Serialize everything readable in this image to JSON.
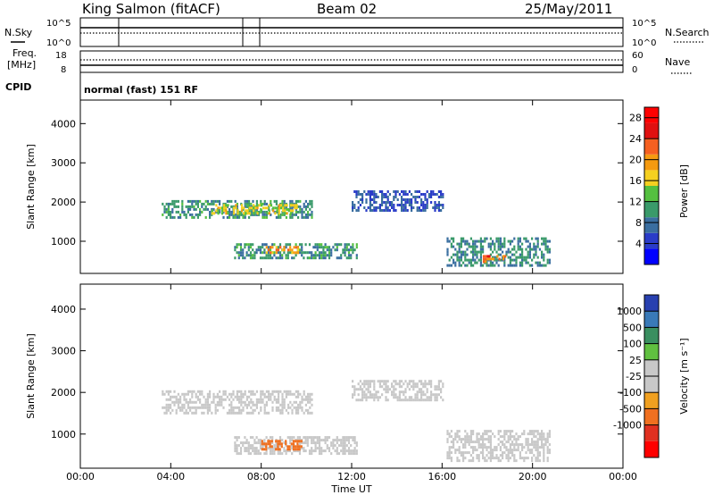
{
  "header": {
    "station": "King Salmon (fitACF)",
    "beam": "Beam 02",
    "date": "25/May/2011"
  },
  "panels": {
    "nsky_label": "N.Sky",
    "nsky_ticks": [
      "10^5",
      "10^0"
    ],
    "nsearch_label": "N.Search",
    "nsearch_ticks": [
      "10^5",
      "10^0"
    ],
    "freq_label": "Freq.",
    "freq_unit": "[MHz]",
    "freq_ticks": [
      "18",
      "8"
    ],
    "nave_label": "Nave",
    "nave_ticks": [
      "60",
      "0"
    ],
    "cpid_label": "CPID",
    "cpid_text": "normal (fast) 151 RF"
  },
  "colors": {
    "power_scale": [
      "#0000ff",
      "#2a3cc8",
      "#3a6ea0",
      "#3a9a6a",
      "#55c040",
      "#f5d020",
      "#f59a10",
      "#f56020",
      "#e01010",
      "#ff0000"
    ],
    "velocity_scale": [
      "#2840b0",
      "#3a7ab8",
      "#3a8f60",
      "#60c040",
      "#c8c8c8",
      "#c8c8c8",
      "#f0a020",
      "#f07020",
      "#e03020",
      "#ff0000"
    ]
  },
  "chart_data": [
    {
      "type": "heatmap",
      "title": "Power",
      "ylabel": "Slant Range [km]",
      "xlabel": "Time UT",
      "x_ticks": [
        "00:00",
        "04:00",
        "08:00",
        "12:00",
        "16:00",
        "20:00",
        "00:00"
      ],
      "y_ticks": [
        "1000",
        "2000",
        "3000",
        "4000"
      ],
      "ylim": [
        180,
        4600
      ],
      "xlim_hours": [
        0,
        24
      ],
      "colorbar_label": "Power [dB]",
      "colorbar_ticks": [
        "4",
        "8",
        "12",
        "16",
        "20",
        "24",
        "28"
      ],
      "colorbar_range": [
        0,
        30
      ],
      "regions": [
        {
          "t0": 3.6,
          "t1": 10.2,
          "r0": 1600,
          "r1": 2050,
          "value": 10
        },
        {
          "t0": 5.8,
          "t1": 9.6,
          "r0": 1700,
          "r1": 1950,
          "value": 16
        },
        {
          "t0": 6.8,
          "t1": 12.2,
          "r0": 600,
          "r1": 950,
          "value": 10
        },
        {
          "t0": 8.2,
          "t1": 9.6,
          "r0": 680,
          "r1": 880,
          "value": 20
        },
        {
          "t0": 16.2,
          "t1": 20.8,
          "r0": 400,
          "r1": 1100,
          "value": 9
        },
        {
          "t0": 17.8,
          "t1": 18.8,
          "r0": 450,
          "r1": 650,
          "value": 22
        },
        {
          "t0": 12.0,
          "t1": 16.0,
          "r0": 1800,
          "r1": 2300,
          "value": 6
        }
      ]
    },
    {
      "type": "heatmap",
      "title": "Velocity",
      "ylabel": "Slant Range [km]",
      "xlabel": "Time UT",
      "x_ticks": [
        "00:00",
        "04:00",
        "08:00",
        "12:00",
        "16:00",
        "20:00",
        "00:00"
      ],
      "y_ticks": [
        "1000",
        "2000",
        "3000",
        "4000"
      ],
      "ylim": [
        180,
        4600
      ],
      "xlim_hours": [
        0,
        24
      ],
      "colorbar_label": "Velocity [m s⁻¹]",
      "colorbar_ticks": [
        "1000",
        "500",
        "100",
        "25",
        "-25",
        "-100",
        "-500",
        "-1000"
      ],
      "regions": [
        {
          "t0": 3.6,
          "t1": 10.2,
          "r0": 1500,
          "r1": 2050,
          "value": 0
        },
        {
          "t0": 6.8,
          "t1": 12.2,
          "r0": 550,
          "r1": 950,
          "value": 0
        },
        {
          "t0": 8.0,
          "t1": 9.8,
          "r0": 620,
          "r1": 860,
          "value": -150
        },
        {
          "t0": 16.2,
          "t1": 20.8,
          "r0": 350,
          "r1": 1100,
          "value": 0
        },
        {
          "t0": 12.0,
          "t1": 16.0,
          "r0": 1800,
          "r1": 2300,
          "value": 0
        }
      ]
    }
  ]
}
